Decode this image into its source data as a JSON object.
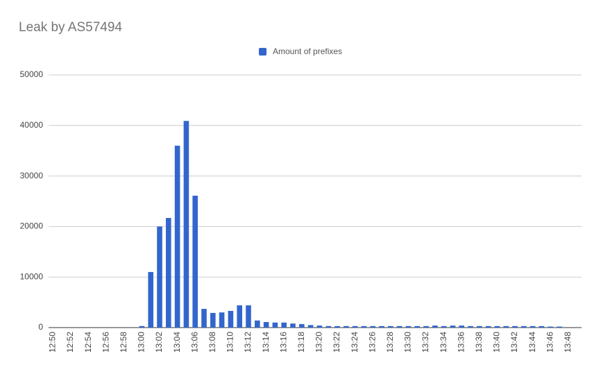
{
  "chart_data": {
    "type": "bar",
    "title": "Leak by AS57494",
    "categories": [
      "12:50",
      null,
      "12:52",
      null,
      "12:54",
      null,
      "12:56",
      null,
      "12:58",
      null,
      "13:00",
      null,
      "13:02",
      null,
      "13:04",
      null,
      "13:06",
      null,
      "13:08",
      null,
      "13:10",
      null,
      "13:12",
      null,
      "13:14",
      null,
      "13:16",
      null,
      "13:18",
      null,
      "13:20",
      null,
      "13:22",
      null,
      "13:24",
      null,
      "13:26",
      null,
      "13:28",
      null,
      "13:30",
      null,
      "13:32",
      null,
      "13:34",
      null,
      "13:36",
      null,
      "13:38",
      null,
      "13:40",
      null,
      "13:42",
      null,
      "13:44",
      null,
      "13:46",
      null,
      "13:48",
      null
    ],
    "series": [
      {
        "name": "Amount of prefixes",
        "color": "#3366cc",
        "values": [
          0,
          0,
          0,
          0,
          0,
          0,
          0,
          0,
          0,
          0,
          300,
          11000,
          20000,
          21700,
          36000,
          40900,
          26100,
          3700,
          2900,
          3000,
          3300,
          4400,
          4400,
          1400,
          1100,
          1000,
          1000,
          800,
          700,
          500,
          400,
          300,
          300,
          300,
          300,
          300,
          300,
          300,
          300,
          300,
          300,
          300,
          300,
          400,
          300,
          400,
          400,
          300,
          300,
          300,
          300,
          300,
          300,
          300,
          300,
          300,
          200,
          200,
          0,
          0
        ]
      }
    ],
    "ylim": [
      0,
      50000
    ],
    "yticks": [
      0,
      10000,
      20000,
      30000,
      40000,
      50000
    ],
    "grid": true,
    "legend": "top"
  }
}
